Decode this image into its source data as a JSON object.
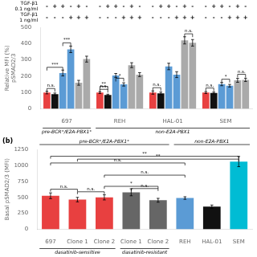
{
  "chart_data": [
    {
      "type": "bar",
      "categories": [
        "697",
        "REH",
        "HAL-01",
        "SEM"
      ],
      "series": [
        {
          "color": "#e84040",
          "values": [
            100,
            100,
            100,
            100
          ],
          "errors": [
            8,
            6,
            10,
            6
          ],
          "conditions": [
            "-",
            "-"
          ]
        },
        {
          "color": "#111111",
          "values": [
            90,
            85,
            95,
            98
          ],
          "errors": [
            7,
            5,
            8,
            5
          ],
          "conditions": [
            "+",
            "-"
          ]
        },
        {
          "color": "#5b9bd5",
          "values": [
            220,
            205,
            260,
            152
          ],
          "errors": [
            18,
            12,
            20,
            10
          ],
          "conditions": [
            "+",
            "-"
          ]
        },
        {
          "color": "#5b9bd5",
          "values": [
            365,
            150,
            210,
            142
          ],
          "errors": [
            20,
            10,
            18,
            8
          ],
          "conditions": [
            "-",
            "+"
          ]
        },
        {
          "color": "#aaaaaa",
          "values": [
            160,
            268,
            420,
            175
          ],
          "errors": [
            15,
            15,
            22,
            12
          ],
          "conditions": [
            "+",
            "+"
          ]
        },
        {
          "color": "#aaaaaa",
          "values": [
            305,
            210,
            405,
            178
          ],
          "errors": [
            18,
            12,
            20,
            10
          ],
          "conditions": [
            "-",
            "+"
          ]
        }
      ],
      "condition_labels": [
        "TGF-β1\n0.1 ng/ml",
        "TGF-β1\n1 ng/ml"
      ],
      "ylabel": "Relative MFI (%)\npSMAD2/3",
      "ylim": [
        0,
        500
      ],
      "yticks": [
        0,
        100,
        200,
        300,
        400,
        500
      ],
      "grid": false,
      "brackets": [
        {
          "group": 0,
          "from": 0,
          "to": 1,
          "y": 105,
          "text": "n.s."
        },
        {
          "group": 0,
          "from": 0,
          "to": 2,
          "y": 235,
          "text": "***"
        },
        {
          "group": 0,
          "from": 2,
          "to": 3,
          "y": 385,
          "text": "***"
        },
        {
          "group": 1,
          "from": 0,
          "to": 1,
          "y": 100,
          "text": "n.s."
        },
        {
          "group": 1,
          "from": 0,
          "to": 1,
          "y": 118,
          "text": "**"
        },
        {
          "group": 1,
          "from": 2,
          "to": 3,
          "y": 168,
          "text": "*"
        },
        {
          "group": 2,
          "from": 0,
          "to": 1,
          "y": 110,
          "text": "n.s."
        },
        {
          "group": 2,
          "from": 4,
          "to": 5,
          "y": 440,
          "text": "n.s."
        },
        {
          "group": 3,
          "from": 0,
          "to": 1,
          "y": 108,
          "text": "n.s."
        },
        {
          "group": 3,
          "from": 2,
          "to": 3,
          "y": 162,
          "text": "*"
        },
        {
          "group": 3,
          "from": 4,
          "to": 5,
          "y": 192,
          "text": "n.s."
        }
      ],
      "groups_below": [
        {
          "label": "pre-BCR⁺/E2A-PBX1⁺",
          "from": 0,
          "to": 0
        },
        {
          "label": "non-E2A-PBX1",
          "from": 1,
          "to": 3
        }
      ]
    },
    {
      "type": "bar",
      "panel_label": "(b)",
      "categories": [
        "697",
        "Clone 1",
        "Clone 2",
        "Clone 1",
        "Clone 2",
        "REH",
        "HAL-01",
        "SEM"
      ],
      "values": [
        525,
        465,
        500,
        580,
        455,
        490,
        355,
        1060
      ],
      "errors": [
        45,
        35,
        40,
        55,
        30,
        20,
        25,
        80
      ],
      "colors": [
        "#e84040",
        "#e84040",
        "#e84040",
        "#666666",
        "#666666",
        "#5b9bd5",
        "#111111",
        "#00bcd4"
      ],
      "ylabel": "Basal pSMAD2/3 (MFI)",
      "ylim": [
        0,
        1250
      ],
      "yticks": [
        0,
        250,
        500,
        750,
        1000,
        1250
      ],
      "grid": false,
      "brackets": [
        {
          "from": 0,
          "to": 1,
          "y": 590,
          "text": "n.s."
        },
        {
          "from": 1,
          "to": 2,
          "y": 550,
          "text": "n.s."
        },
        {
          "from": 2,
          "to": 4,
          "y": 635,
          "text": "*"
        },
        {
          "from": 3,
          "to": 4,
          "y": 600,
          "text": "n.s."
        },
        {
          "from": 0,
          "to": 7,
          "y": 1105,
          "text": "**"
        },
        {
          "from": 1,
          "to": 7,
          "y": 1060,
          "text": "**"
        },
        {
          "from": 0,
          "to": 5,
          "y": 1000,
          "text": "n.s."
        },
        {
          "from": 2,
          "to": 5,
          "y": 810,
          "text": "n.s."
        }
      ],
      "groups_above": [
        {
          "label": "pre-BCR⁺/E2A-PBX1⁺",
          "from": 0,
          "to": 4
        },
        {
          "label": "non-E2A-PBX1",
          "from": 5,
          "to": 7
        }
      ],
      "groups_below": [
        {
          "label": "dasatinib-sensitive",
          "from": 0,
          "to": 2
        },
        {
          "label": "dasatinib-resistant",
          "from": 3,
          "to": 4
        }
      ]
    }
  ]
}
